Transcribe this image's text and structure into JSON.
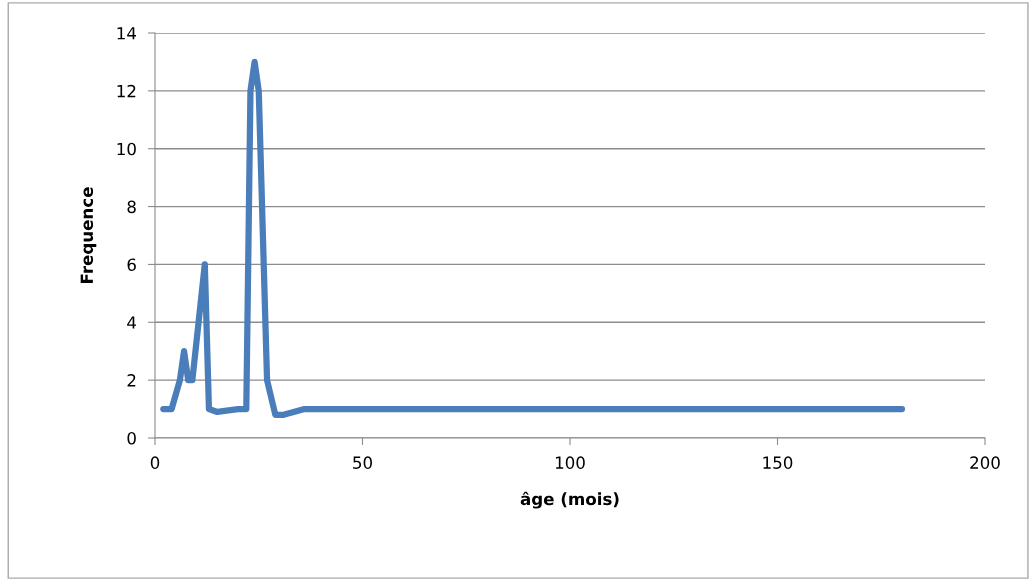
{
  "chart_data": {
    "type": "line",
    "xlabel": "âge (mois)",
    "ylabel": "Frequence",
    "x": [
      2,
      4,
      6,
      7,
      8,
      9,
      12,
      13,
      15,
      20,
      22,
      23,
      24,
      25,
      27,
      29,
      31,
      36,
      180
    ],
    "series": [
      {
        "color": "#4a7ebb",
        "values": [
          1,
          1,
          2,
          3,
          2,
          2,
          6,
          1,
          0.9,
          1,
          1,
          12,
          13,
          12,
          2,
          0.8,
          0.8,
          1,
          1
        ]
      }
    ],
    "xlim": [
      0,
      200
    ],
    "xticks": [
      0,
      50,
      100,
      150,
      200
    ],
    "ylim": [
      0,
      14
    ],
    "yticks": [
      0,
      2,
      4,
      6,
      8,
      10,
      12,
      14
    ],
    "grid": "y",
    "legend": false,
    "marker": "none",
    "line_style": "solid"
  }
}
